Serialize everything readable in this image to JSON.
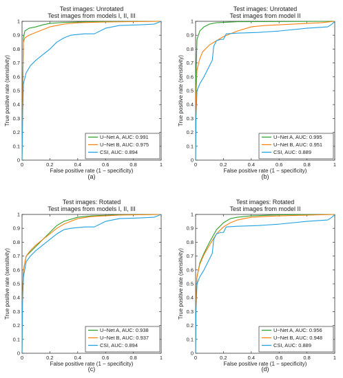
{
  "chart_data": [
    {
      "type": "line",
      "panel_label": "(a)",
      "title_line1": "Test images: Unrotated",
      "title_line2": "Test images from models I, II, III",
      "xlabel": "False positive rate (1 − specificity)",
      "ylabel": "True positive rate (sensitivity)",
      "xlim": [
        0,
        1
      ],
      "ylim": [
        0,
        1
      ],
      "x_ticks": [
        "0",
        "0.2",
        "0.4",
        "0.6",
        "0.8",
        "1"
      ],
      "y_ticks": [
        "0",
        "0.1",
        "0.2",
        "0.3",
        "0.4",
        "0.5",
        "0.6",
        "0.7",
        "0.8",
        "0.9",
        "1"
      ],
      "grid": false,
      "legend_position": "bottom-right",
      "series": [
        {
          "name": "U−Net A, AUC: 0.991",
          "color": "#2ca02c",
          "points": [
            [
              0,
              0
            ],
            [
              0.005,
              0.5
            ],
            [
              0.01,
              0.88
            ],
            [
              0.02,
              0.93
            ],
            [
              0.05,
              0.95
            ],
            [
              0.1,
              0.96
            ],
            [
              0.15,
              0.975
            ],
            [
              0.2,
              0.985
            ],
            [
              0.3,
              0.992
            ],
            [
              0.5,
              0.997
            ],
            [
              1,
              1
            ]
          ]
        },
        {
          "name": "U−Net B, AUC: 0.975",
          "color": "#ff7f0e",
          "points": [
            [
              0,
              0
            ],
            [
              0.005,
              0.5
            ],
            [
              0.01,
              0.85
            ],
            [
              0.02,
              0.88
            ],
            [
              0.05,
              0.9
            ],
            [
              0.1,
              0.92
            ],
            [
              0.2,
              0.96
            ],
            [
              0.3,
              0.98
            ],
            [
              0.4,
              0.99
            ],
            [
              0.6,
              0.995
            ],
            [
              1,
              1
            ]
          ]
        },
        {
          "name": "CSI, AUC: 0.894",
          "color": "#1fa0e0",
          "points": [
            [
              0,
              0
            ],
            [
              0.005,
              0.35
            ],
            [
              0.01,
              0.55
            ],
            [
              0.03,
              0.63
            ],
            [
              0.06,
              0.68
            ],
            [
              0.1,
              0.72
            ],
            [
              0.15,
              0.76
            ],
            [
              0.2,
              0.8
            ],
            [
              0.25,
              0.85
            ],
            [
              0.3,
              0.88
            ],
            [
              0.35,
              0.9
            ],
            [
              0.45,
              0.91
            ],
            [
              0.52,
              0.91
            ],
            [
              0.6,
              0.95
            ],
            [
              0.7,
              0.97
            ],
            [
              0.85,
              0.975
            ],
            [
              0.95,
              0.98
            ],
            [
              1,
              1
            ]
          ]
        }
      ]
    },
    {
      "type": "line",
      "panel_label": "(b)",
      "title_line1": "Test images: Unrotated",
      "title_line2": "Test images from model II",
      "xlabel": "False positive rate (1 − specificity)",
      "ylabel": "True positive rate (sensitivity)",
      "xlim": [
        0,
        1
      ],
      "ylim": [
        0,
        1
      ],
      "x_ticks": [
        "0",
        "0.2",
        "0.4",
        "0.6",
        "0.8",
        "1"
      ],
      "y_ticks": [
        "0",
        "0.1",
        "0.2",
        "0.3",
        "0.4",
        "0.5",
        "0.6",
        "0.7",
        "0.8",
        "0.9",
        "1"
      ],
      "grid": false,
      "legend_position": "bottom-right",
      "series": [
        {
          "name": "U−Net A, AUC: 0.995",
          "color": "#2ca02c",
          "points": [
            [
              0,
              0
            ],
            [
              0.003,
              0.6
            ],
            [
              0.01,
              0.87
            ],
            [
              0.03,
              0.93
            ],
            [
              0.06,
              0.96
            ],
            [
              0.1,
              0.98
            ],
            [
              0.15,
              0.99
            ],
            [
              0.3,
              0.997
            ],
            [
              1,
              1
            ]
          ]
        },
        {
          "name": "U−Net B, AUC: 0.951",
          "color": "#ff7f0e",
          "points": [
            [
              0,
              0
            ],
            [
              0.003,
              0.45
            ],
            [
              0.01,
              0.65
            ],
            [
              0.03,
              0.73
            ],
            [
              0.05,
              0.78
            ],
            [
              0.1,
              0.83
            ],
            [
              0.15,
              0.86
            ],
            [
              0.2,
              0.89
            ],
            [
              0.3,
              0.93
            ],
            [
              0.4,
              0.96
            ],
            [
              0.5,
              0.97
            ],
            [
              0.7,
              0.98
            ],
            [
              0.9,
              0.99
            ],
            [
              1,
              1
            ]
          ]
        },
        {
          "name": "CSI, AUC: 0.889",
          "color": "#1fa0e0",
          "points": [
            [
              0,
              0
            ],
            [
              0.003,
              0.3
            ],
            [
              0.01,
              0.5
            ],
            [
              0.03,
              0.55
            ],
            [
              0.06,
              0.6
            ],
            [
              0.1,
              0.68
            ],
            [
              0.12,
              0.72
            ],
            [
              0.13,
              0.82
            ],
            [
              0.15,
              0.86
            ],
            [
              0.18,
              0.87
            ],
            [
              0.2,
              0.87
            ],
            [
              0.22,
              0.91
            ],
            [
              0.3,
              0.915
            ],
            [
              0.45,
              0.92
            ],
            [
              0.6,
              0.93
            ],
            [
              0.8,
              0.95
            ],
            [
              0.95,
              0.96
            ],
            [
              0.98,
              0.98
            ],
            [
              1,
              1
            ]
          ]
        }
      ]
    },
    {
      "type": "line",
      "panel_label": "(c)",
      "title_line1": "Test images: Rotated",
      "title_line2": "Test images from models I, II, III",
      "xlabel": "False positive rate (1 − specificity)",
      "ylabel": "True positive rate (sensitivity)",
      "xlim": [
        0,
        1
      ],
      "ylim": [
        0,
        1
      ],
      "x_ticks": [
        "0",
        "0.2",
        "0.4",
        "0.6",
        "0.8",
        "1"
      ],
      "y_ticks": [
        "0",
        "0.1",
        "0.2",
        "0.3",
        "0.4",
        "0.5",
        "0.6",
        "0.7",
        "0.8",
        "0.9",
        "1"
      ],
      "grid": false,
      "legend_position": "bottom-right",
      "series": [
        {
          "name": "U−Net A, AUC: 0.938",
          "color": "#2ca02c",
          "points": [
            [
              0,
              0
            ],
            [
              0.003,
              0.4
            ],
            [
              0.01,
              0.6
            ],
            [
              0.03,
              0.7
            ],
            [
              0.06,
              0.73
            ],
            [
              0.1,
              0.77
            ],
            [
              0.15,
              0.82
            ],
            [
              0.2,
              0.87
            ],
            [
              0.25,
              0.92
            ],
            [
              0.3,
              0.95
            ],
            [
              0.4,
              0.98
            ],
            [
              0.5,
              0.99
            ],
            [
              0.7,
              0.997
            ],
            [
              1,
              1
            ]
          ]
        },
        {
          "name": "U−Net B, AUC: 0.937",
          "color": "#ff7f0e",
          "points": [
            [
              0,
              0
            ],
            [
              0.003,
              0.4
            ],
            [
              0.01,
              0.6
            ],
            [
              0.03,
              0.7
            ],
            [
              0.06,
              0.74
            ],
            [
              0.1,
              0.78
            ],
            [
              0.15,
              0.82
            ],
            [
              0.2,
              0.86
            ],
            [
              0.25,
              0.9
            ],
            [
              0.3,
              0.93
            ],
            [
              0.4,
              0.97
            ],
            [
              0.5,
              0.985
            ],
            [
              0.7,
              0.995
            ],
            [
              1,
              1
            ]
          ]
        },
        {
          "name": "CSI, AUC: 0.894",
          "color": "#1fa0e0",
          "points": [
            [
              0,
              0
            ],
            [
              0.003,
              0.35
            ],
            [
              0.01,
              0.55
            ],
            [
              0.03,
              0.66
            ],
            [
              0.06,
              0.7
            ],
            [
              0.1,
              0.74
            ],
            [
              0.15,
              0.78
            ],
            [
              0.2,
              0.82
            ],
            [
              0.25,
              0.86
            ],
            [
              0.3,
              0.89
            ],
            [
              0.35,
              0.9
            ],
            [
              0.45,
              0.91
            ],
            [
              0.52,
              0.91
            ],
            [
              0.6,
              0.95
            ],
            [
              0.7,
              0.97
            ],
            [
              0.85,
              0.975
            ],
            [
              0.95,
              0.98
            ],
            [
              1,
              1
            ]
          ]
        }
      ]
    },
    {
      "type": "line",
      "panel_label": "(d)",
      "title_line1": "Test images: Rotated",
      "title_line2": "Test images from model II",
      "xlabel": "False positive rate (1 − specificity)",
      "ylabel": "True positive rate (sensitivity)",
      "xlim": [
        0,
        1
      ],
      "ylim": [
        0,
        1
      ],
      "x_ticks": [
        "0",
        "0.2",
        "0.4",
        "0.6",
        "0.8",
        "1"
      ],
      "y_ticks": [
        "0",
        "0.1",
        "0.2",
        "0.3",
        "0.4",
        "0.5",
        "0.6",
        "0.7",
        "0.8",
        "0.9",
        "1"
      ],
      "grid": false,
      "legend_position": "bottom-right",
      "series": [
        {
          "name": "U−Net A, AUC: 0.956",
          "color": "#2ca02c",
          "points": [
            [
              0,
              0
            ],
            [
              0.003,
              0.4
            ],
            [
              0.01,
              0.55
            ],
            [
              0.03,
              0.65
            ],
            [
              0.06,
              0.72
            ],
            [
              0.1,
              0.8
            ],
            [
              0.15,
              0.89
            ],
            [
              0.2,
              0.94
            ],
            [
              0.25,
              0.97
            ],
            [
              0.3,
              0.98
            ],
            [
              0.4,
              0.99
            ],
            [
              0.6,
              0.997
            ],
            [
              1,
              1
            ]
          ]
        },
        {
          "name": "U−Net B, AUC: 0.948",
          "color": "#ff7f0e",
          "points": [
            [
              0,
              0
            ],
            [
              0.003,
              0.4
            ],
            [
              0.01,
              0.55
            ],
            [
              0.03,
              0.64
            ],
            [
              0.06,
              0.71
            ],
            [
              0.1,
              0.78
            ],
            [
              0.15,
              0.86
            ],
            [
              0.2,
              0.91
            ],
            [
              0.25,
              0.94
            ],
            [
              0.3,
              0.96
            ],
            [
              0.4,
              0.98
            ],
            [
              0.6,
              0.99
            ],
            [
              1,
              1
            ]
          ]
        },
        {
          "name": "CSI, AUC: 0.889",
          "color": "#1fa0e0",
          "points": [
            [
              0,
              0
            ],
            [
              0.003,
              0.3
            ],
            [
              0.01,
              0.5
            ],
            [
              0.03,
              0.55
            ],
            [
              0.06,
              0.6
            ],
            [
              0.1,
              0.68
            ],
            [
              0.12,
              0.72
            ],
            [
              0.13,
              0.82
            ],
            [
              0.15,
              0.86
            ],
            [
              0.18,
              0.87
            ],
            [
              0.2,
              0.87
            ],
            [
              0.22,
              0.91
            ],
            [
              0.3,
              0.915
            ],
            [
              0.45,
              0.92
            ],
            [
              0.6,
              0.93
            ],
            [
              0.8,
              0.95
            ],
            [
              0.95,
              0.96
            ],
            [
              0.98,
              0.98
            ],
            [
              1,
              1
            ]
          ]
        }
      ]
    }
  ]
}
